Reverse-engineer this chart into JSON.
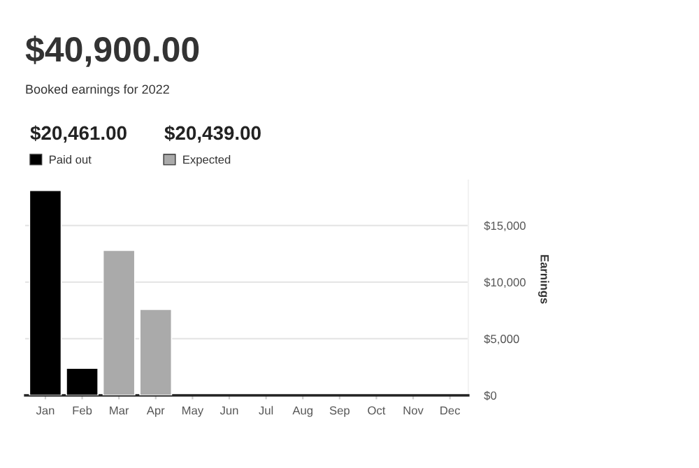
{
  "chart_data": {
    "type": "bar",
    "title": "$40,900.00",
    "subtitle": "Booked earnings for 2022",
    "ylabel": "Earnings",
    "categories": [
      "Jan",
      "Feb",
      "Mar",
      "Apr",
      "May",
      "Jun",
      "Jul",
      "Aug",
      "Sep",
      "Oct",
      "Nov",
      "Dec"
    ],
    "series": [
      {
        "name": "Paid out",
        "color": "#000000",
        "values": [
          18100,
          2400,
          null,
          null,
          null,
          null,
          null,
          null,
          null,
          null,
          null,
          null
        ]
      },
      {
        "name": "Expected",
        "color": "#aaaaaa",
        "values": [
          null,
          null,
          12800,
          7600,
          null,
          null,
          null,
          null,
          null,
          null,
          null,
          null
        ]
      }
    ],
    "annotations": [
      "$20,461.00",
      "$20,439.00"
    ],
    "ylim": [
      0,
      19000
    ],
    "yticks": [
      {
        "value": 0,
        "label": "$0"
      },
      {
        "value": 5000,
        "label": "$5,000"
      },
      {
        "value": 10000,
        "label": "$10,000"
      },
      {
        "value": 15000,
        "label": "$15,000"
      }
    ],
    "grid": "y",
    "legend": "top left"
  }
}
